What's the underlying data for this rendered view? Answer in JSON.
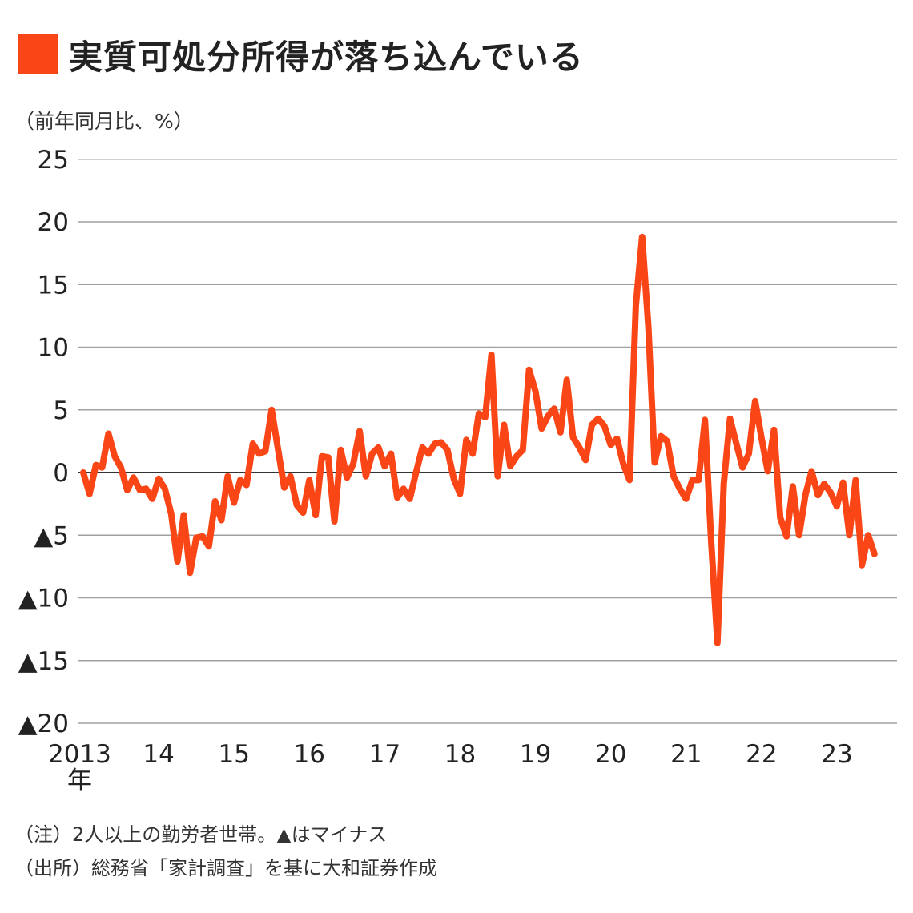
{
  "title": "実質可処分所得が落ち込んでいる",
  "unit_label": "（前年同月比、%）",
  "notes": [
    "（注）2人以上の勤労者世帯。▲はマイナス",
    "（出所）総務省「家計調査」を基に大和証券作成"
  ],
  "colors": {
    "accent": "#fa4616",
    "grid": "#a0a0a0",
    "zero_line": "#333333",
    "text": "#222222"
  },
  "chart_data": {
    "type": "line",
    "title": "実質可処分所得が落ち込んでいる",
    "ylabel": "（前年同月比、%）",
    "xlabel": "",
    "ylim": [
      -20,
      25
    ],
    "y_ticks": [
      25,
      20,
      15,
      10,
      5,
      0,
      -5,
      -10,
      -15,
      -20
    ],
    "y_tick_labels": [
      "25",
      "20",
      "15",
      "10",
      "5",
      "0",
      "▲5",
      "▲10",
      "▲15",
      "▲20"
    ],
    "x_tick_labels": [
      "2013",
      "14",
      "15",
      "16",
      "17",
      "18",
      "19",
      "20",
      "21",
      "22",
      "23"
    ],
    "x_tick_suffix": "年",
    "grid": true,
    "legend": "none",
    "series": [
      {
        "start": "2013-01",
        "values": [
          0.0,
          -1.7,
          0.6,
          0.4,
          3.1,
          1.3,
          0.4,
          -1.4,
          -0.4,
          -1.4,
          -1.3,
          -2.1,
          -0.5,
          -1.3,
          -3.3,
          -7.1,
          -3.4,
          -8.0,
          -5.2,
          -5.1,
          -5.9,
          -2.3,
          -3.8,
          -0.3,
          -2.4,
          -0.6,
          -1.0,
          2.3,
          1.5,
          1.7,
          5.0,
          1.9,
          -1.2,
          -0.3,
          -2.6,
          -3.2,
          -0.6,
          -3.4,
          1.3,
          1.2,
          -3.9,
          1.8,
          -0.4,
          0.7,
          3.3,
          -0.3,
          1.5,
          2.0,
          0.5,
          1.5,
          -2.0,
          -1.3,
          -2.1,
          0.0,
          2.0,
          1.5,
          2.3,
          2.4,
          1.8,
          -0.5,
          -1.7,
          2.6,
          1.5,
          4.7,
          4.4,
          9.4,
          -0.3,
          3.8,
          0.5,
          1.3,
          1.8,
          8.2,
          6.5,
          3.5,
          4.5,
          5.1,
          3.2,
          7.4,
          2.8,
          2.0,
          1.0,
          3.8,
          4.3,
          3.7,
          2.2,
          2.7,
          0.7,
          -0.6,
          13.3,
          18.8,
          11.6,
          0.8,
          2.9,
          2.5,
          -0.3,
          -1.3,
          -2.1,
          -0.6,
          -0.6,
          4.2,
          -5.5,
          -13.6,
          -0.9,
          4.3,
          2.3,
          0.4,
          1.5,
          5.7,
          2.8,
          0.1,
          3.4,
          -3.6,
          -5.1,
          -1.1,
          -5.0,
          -1.8,
          0.1,
          -1.8,
          -0.9,
          -1.6,
          -2.7,
          -0.8,
          -5.0,
          -0.6,
          -7.4,
          -5.0,
          -6.5
        ]
      }
    ]
  }
}
